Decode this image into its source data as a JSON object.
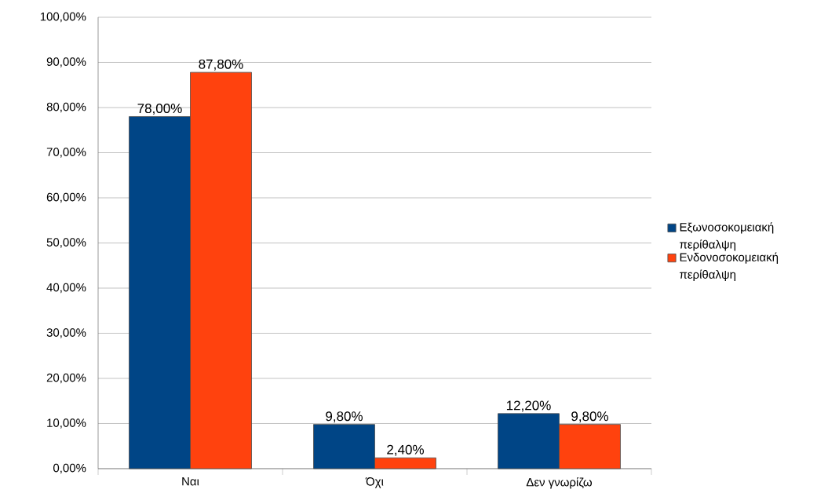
{
  "chart_data": {
    "type": "bar",
    "categories": [
      "Ναι",
      "Όχι",
      "Δεν γνωρίζω"
    ],
    "series": [
      {
        "name": "Εξωνοσοκομειακή περίθαλψη",
        "color": "#004586",
        "values": [
          78.0,
          9.8,
          12.2
        ],
        "value_labels": [
          "78,00%",
          "9,80%",
          "12,20%"
        ]
      },
      {
        "name": "Ενδονοσοκομειακή περίθαλψη",
        "color": "#ff420e",
        "values": [
          87.8,
          2.4,
          9.8
        ],
        "value_labels": [
          "87,80%",
          "2,40%",
          "9,80%"
        ]
      }
    ],
    "ylim": [
      0,
      100
    ],
    "yticks": [
      {
        "value": 0,
        "label": "0,00%"
      },
      {
        "value": 10,
        "label": "10,00%"
      },
      {
        "value": 20,
        "label": "20,00%"
      },
      {
        "value": 30,
        "label": "30,00%"
      },
      {
        "value": 40,
        "label": "40,00%"
      },
      {
        "value": 50,
        "label": "50,00%"
      },
      {
        "value": 60,
        "label": "60,00%"
      },
      {
        "value": 70,
        "label": "70,00%"
      },
      {
        "value": 80,
        "label": "80,00%"
      },
      {
        "value": 90,
        "label": "90,00%"
      },
      {
        "value": 100,
        "label": "100,00%"
      }
    ],
    "grid": "y",
    "legend": "right"
  }
}
